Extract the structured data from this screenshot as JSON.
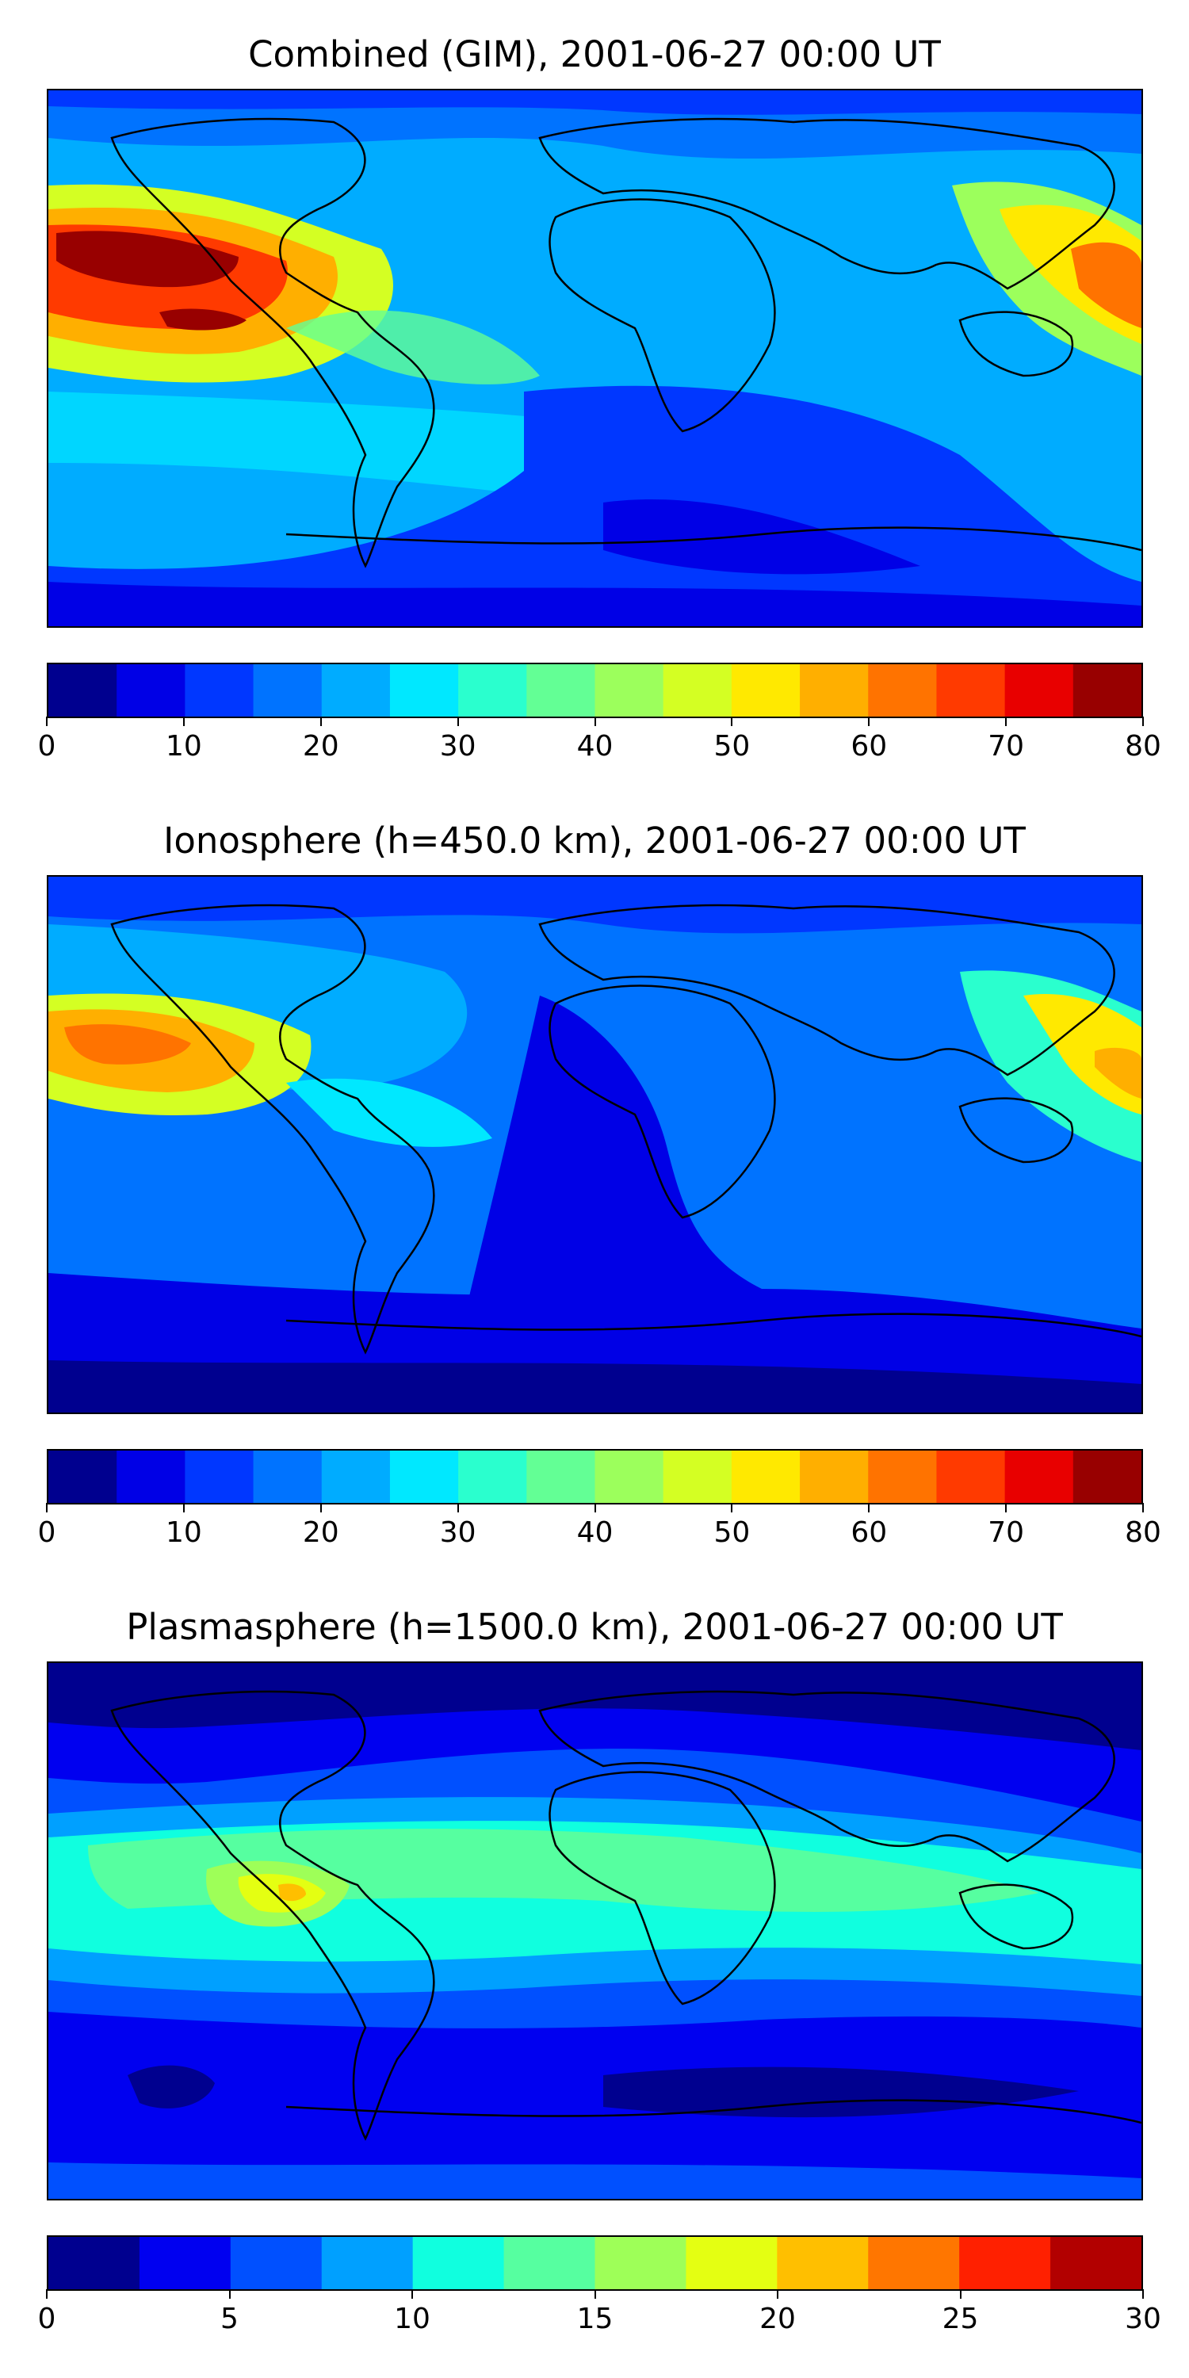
{
  "panels": [
    {
      "id": "combined",
      "title": "Combined (GIM), 2001-06-27 00:00 UT",
      "colorbar": {
        "min": 0,
        "max": 80,
        "step": 5,
        "tick_labels": [
          "0",
          "10",
          "20",
          "30",
          "40",
          "50",
          "60",
          "70",
          "80"
        ],
        "colors": [
          "#00008f",
          "#0000e6",
          "#0037ff",
          "#0073ff",
          "#00acff",
          "#00e8ff",
          "#2affce",
          "#63ff95",
          "#9cff5c",
          "#d4ff23",
          "#ffe900",
          "#ffaf00",
          "#ff7300",
          "#ff3a00",
          "#e80000",
          "#980000"
        ]
      },
      "chart_data": {
        "type": "heatmap",
        "field": "TEC",
        "value_range": [
          0,
          80
        ],
        "units": ""
      }
    },
    {
      "id": "ionosphere",
      "title": "Ionosphere  (h=450.0 km), 2001-06-27 00:00 UT",
      "colorbar": {
        "min": 0,
        "max": 80,
        "step": 5,
        "tick_labels": [
          "0",
          "10",
          "20",
          "30",
          "40",
          "50",
          "60",
          "70",
          "80"
        ],
        "colors": [
          "#00008f",
          "#0000e6",
          "#0037ff",
          "#0073ff",
          "#00acff",
          "#00e8ff",
          "#2affce",
          "#63ff95",
          "#9cff5c",
          "#d4ff23",
          "#ffe900",
          "#ffaf00",
          "#ff7300",
          "#ff3a00",
          "#e80000",
          "#980000"
        ]
      },
      "chart_data": {
        "type": "heatmap",
        "field": "TEC",
        "value_range": [
          0,
          80
        ],
        "units": ""
      }
    },
    {
      "id": "plasmasphere",
      "title": "Plasmasphere (h=1500.0 km), 2001-06-27 00:00 UT",
      "colorbar": {
        "min": 0,
        "max": 30,
        "step": 2.5,
        "tick_labels": [
          "0",
          "5",
          "10",
          "15",
          "20",
          "25",
          "30"
        ],
        "colors": [
          "#00008f",
          "#0000f0",
          "#0050ff",
          "#00a0ff",
          "#10ffdf",
          "#56ffa0",
          "#9eff58",
          "#e4ff12",
          "#ffbf00",
          "#ff7600",
          "#ff2000",
          "#b20000"
        ]
      },
      "chart_data": {
        "type": "heatmap",
        "field": "TEC",
        "value_range": [
          0,
          30
        ],
        "units": ""
      }
    }
  ]
}
